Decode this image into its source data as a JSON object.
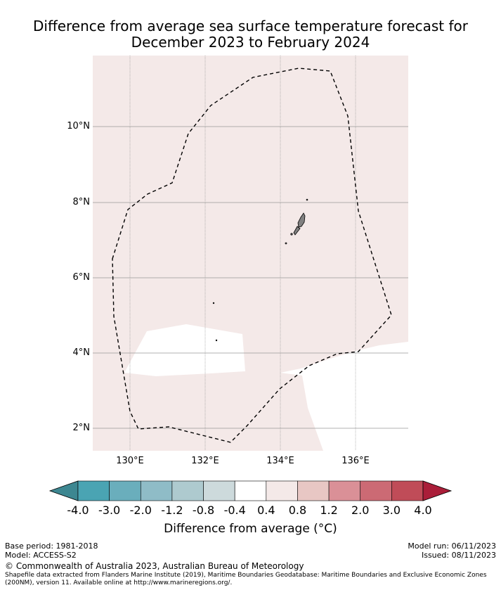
{
  "title_line1": "Difference from average sea surface temperature forecast for",
  "title_line2": "December 2023 to February 2024",
  "lat_labels": [
    "10°N",
    "8°N",
    "6°N",
    "4°N",
    "2°N"
  ],
  "lon_labels": [
    "130°E",
    "132°E",
    "134°E",
    "136°E"
  ],
  "colorbar": {
    "ticks": [
      "-4.0",
      "-3.0",
      "-2.0",
      "-1.2",
      "-0.8",
      "-0.4",
      "0.4",
      "0.8",
      "1.2",
      "2.0",
      "3.0",
      "4.0"
    ],
    "colors": [
      "#4aa4b3",
      "#6aaebc",
      "#8fbcc7",
      "#aecacf",
      "#cddadc",
      "#ffffff",
      "#f4e9e8",
      "#e8c7c4",
      "#da9097",
      "#cc6a74",
      "#c04c58"
    ],
    "under_color": "#3d8791",
    "over_color": "#aa1e39",
    "label": "Difference from average (°C)"
  },
  "map_colors": {
    "ocean_anomaly": "#f4e9e8",
    "neutral": "#ffffff",
    "land": "#808080"
  },
  "footer": {
    "base_period": "Base period: 1981-2018",
    "model": "Model: ACCESS-S2",
    "model_run": "Model run: 06/11/2023",
    "issued": "Issued: 08/11/2023",
    "copyright": "© Commonwealth of Australia 2023, Australian Bureau of Meteorology",
    "shapefile_line1": "Shapefile data extracted from Flanders Marine Institute (2019), Maritime Boundaries Geodatabase: Maritime Boundaries and Exclusive Economic Zones",
    "shapefile_line2": "(200NM), version 11. Available online at http://www.marineregions.org/."
  }
}
